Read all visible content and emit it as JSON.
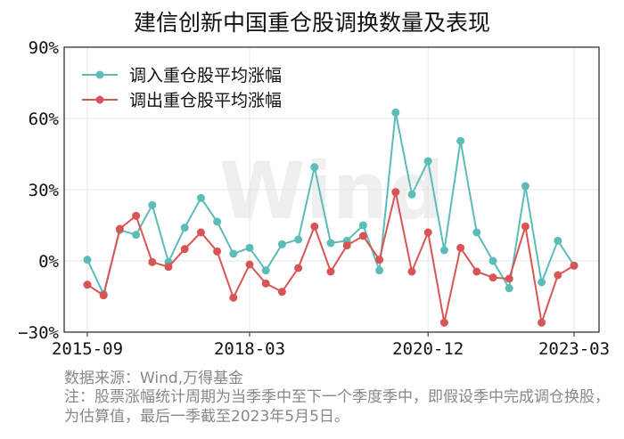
{
  "title": "建信创新中国重仓股调换数量及表现",
  "source": "数据来源：Wind,万得基金",
  "note": "注：股票涨幅统计周期为当季季中至下一个季度季中，即假设季中完成调仓换股，为估算值，最后一季截至2023年5月5日。",
  "watermark": "Wind",
  "colors": {
    "series_in": "#5bbcb8",
    "series_out": "#d95555"
  },
  "chart_data": {
    "type": "line",
    "title": "建信创新中国重仓股调换数量及表现",
    "x": [
      "2015-09",
      "2015-12",
      "2016-03",
      "2016-06",
      "2016-09",
      "2016-12",
      "2017-03",
      "2017-06",
      "2017-09",
      "2017-12",
      "2018-03",
      "2018-06",
      "2018-09",
      "2018-12",
      "2019-03",
      "2019-06",
      "2019-09",
      "2019-12",
      "2020-03",
      "2020-06",
      "2020-09",
      "2020-12",
      "2021-03",
      "2021-06",
      "2021-09",
      "2021-12",
      "2022-03",
      "2022-06",
      "2022-09",
      "2022-12",
      "2023-03"
    ],
    "x_tick_labels": [
      "2015-09",
      "2018-03",
      "2020-12",
      "2023-03"
    ],
    "ylim": [
      -30,
      90
    ],
    "y_ticks": [
      -30,
      0,
      30,
      60,
      90
    ],
    "y_tick_labels": [
      "−30%",
      "0%",
      "30%",
      "60%",
      "90%"
    ],
    "grid": true,
    "legend_position": "top-left",
    "series": [
      {
        "name": "调入重仓股平均涨幅",
        "values": [
          0.5,
          -14,
          13,
          11,
          23.5,
          -0.5,
          14,
          26.5,
          16.5,
          3,
          5.5,
          -4,
          7,
          9,
          39.5,
          7.5,
          8.5,
          15,
          -4,
          62.5,
          28,
          42,
          4.5,
          50.5,
          12,
          0,
          -11.5,
          31.5,
          -9,
          8.5,
          -2
        ]
      },
      {
        "name": "调出重仓股平均涨幅",
        "values": [
          -10,
          -14.5,
          13.5,
          19,
          -0.5,
          -2.5,
          5,
          12,
          4,
          -15.5,
          -1.5,
          -9.5,
          -13,
          -3,
          14.5,
          -4.5,
          6.5,
          10.5,
          0.5,
          29,
          -4.5,
          12,
          -26,
          5.5,
          -4.5,
          -7,
          -7.5,
          14.5,
          -26,
          -6,
          -2
        ]
      }
    ]
  }
}
